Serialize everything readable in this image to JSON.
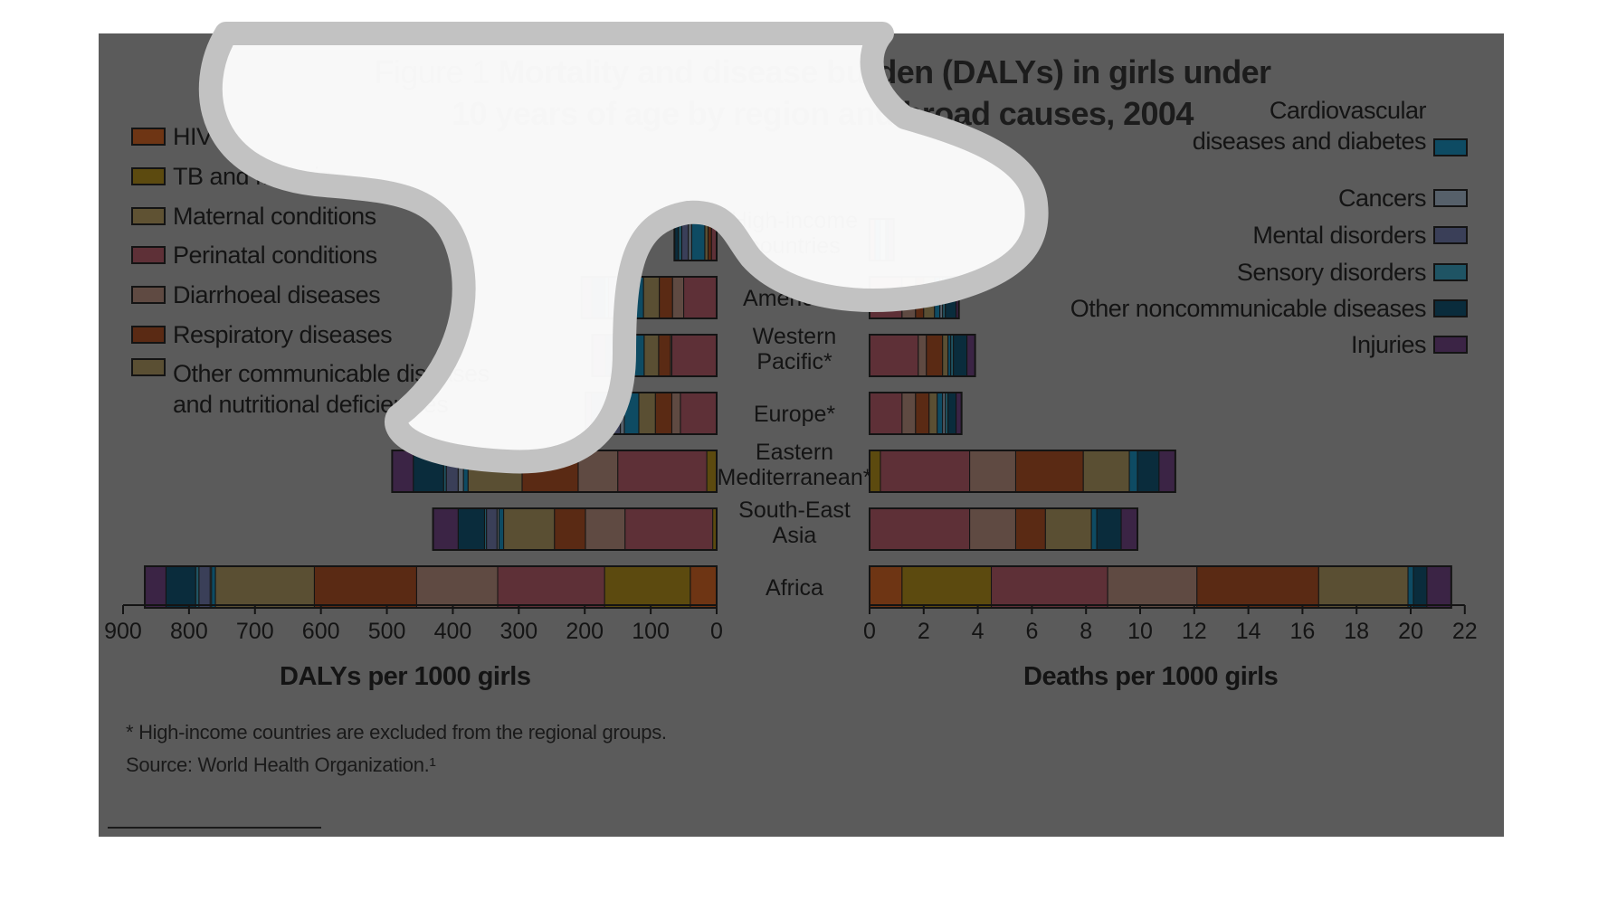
{
  "title": {
    "prefix": "Figure 1 ",
    "main": "Mortality and disease burden (DALYs) in girls under 10 years of age by region and broad causes, 2004"
  },
  "legend_left": [
    {
      "label": "HIV",
      "color": "#6e3514"
    },
    {
      "label": "TB and Malaria",
      "color": "#5c4a0f"
    },
    {
      "label": "Maternal conditions",
      "color": "#5f5233"
    },
    {
      "label": "Perinatal conditions",
      "color": "#5e3037"
    },
    {
      "label": "Diarrhoeal diseases",
      "color": "#5f4a42"
    },
    {
      "label": "Respiratory diseases",
      "color": "#5a2a14"
    },
    {
      "label": "Other communicable diseases\nand nutritional deficiencies",
      "color": "#5a4f33"
    }
  ],
  "legend_right": [
    {
      "label": "Cardiovascular\ndiseases and diabetes",
      "color": "#0e4b63"
    },
    {
      "label": "Cancers",
      "color": "#56606a"
    },
    {
      "label": "Mental disorders",
      "color": "#3a3f58"
    },
    {
      "label": "Sensory disorders",
      "color": "#1f5464"
    },
    {
      "label": "Other noncommunicable diseases",
      "color": "#0a2c3c"
    },
    {
      "label": "Injuries",
      "color": "#3b2445"
    }
  ],
  "axes": {
    "left_title": "DALYs per 1000 girls",
    "right_title": "Deaths per 1000 girls",
    "left_ticks": [
      "900",
      "800",
      "700",
      "600",
      "500",
      "400",
      "300",
      "200",
      "100",
      "0"
    ],
    "right_ticks": [
      "0",
      "2",
      "4",
      "6",
      "8",
      "10",
      "12",
      "14",
      "16",
      "18",
      "20",
      "22"
    ]
  },
  "notes": {
    "footnote": "* High-income countries are excluded from the regional groups.",
    "source": "Source: World Health Organization.¹"
  },
  "chart_data": [
    {
      "type": "bar",
      "orientation": "horizontal",
      "stacked": true,
      "direction": "right-to-left",
      "xlabel": "DALYs per 1000 girls",
      "xlim": [
        0,
        900
      ],
      "categories": [
        "High-income\ncountries",
        "Americas*",
        "Western\nPacific*",
        "Europe*",
        "Eastern\nMediterranean*",
        "South-East\nAsia",
        "Africa"
      ],
      "series": [
        {
          "name": "HIV",
          "color": "#6e3514",
          "values": [
            0,
            0,
            0,
            0,
            0,
            0,
            40
          ]
        },
        {
          "name": "TB and Malaria",
          "color": "#5c4a0f",
          "values": [
            0,
            0,
            0,
            0,
            15,
            6,
            130
          ]
        },
        {
          "name": "Maternal conditions",
          "color": "#5f5233",
          "values": [
            0,
            0,
            0,
            0,
            0,
            0,
            0
          ]
        },
        {
          "name": "Perinatal conditions",
          "color": "#5e3037",
          "values": [
            8,
            50,
            68,
            55,
            135,
            133,
            162
          ]
        },
        {
          "name": "Diarrhoeal diseases",
          "color": "#5f4a42",
          "values": [
            0,
            17,
            2,
            13,
            60,
            60,
            123
          ]
        },
        {
          "name": "Respiratory diseases",
          "color": "#5a2a14",
          "values": [
            5,
            20,
            18,
            25,
            85,
            47,
            155
          ]
        },
        {
          "name": "Other communicable diseases and nutritional deficiencies",
          "color": "#5a4f33",
          "values": [
            5,
            24,
            22,
            25,
            82,
            77,
            150
          ]
        },
        {
          "name": "Cardiovascular diseases and diabetes",
          "color": "#0e4b63",
          "values": [
            20,
            23,
            22,
            22,
            7,
            7,
            6
          ]
        },
        {
          "name": "Cancers",
          "color": "#56606a",
          "values": [
            5,
            4,
            3,
            6,
            8,
            3,
            2
          ]
        },
        {
          "name": "Mental disorders",
          "color": "#3a3f58",
          "values": [
            10,
            26,
            12,
            18,
            18,
            16,
            17
          ]
        },
        {
          "name": "Sensory disorders",
          "color": "#1f5464",
          "values": [
            5,
            5,
            8,
            4,
            4,
            3,
            5
          ]
        },
        {
          "name": "Other noncommunicable diseases",
          "color": "#0a2c3c",
          "values": [
            6,
            20,
            14,
            22,
            46,
            40,
            45
          ]
        },
        {
          "name": "Injuries",
          "color": "#3b2445",
          "values": [
            0,
            16,
            20,
            9,
            32,
            38,
            32
          ]
        }
      ]
    },
    {
      "type": "bar",
      "orientation": "horizontal",
      "stacked": true,
      "direction": "left-to-right",
      "xlabel": "Deaths per 1000 girls",
      "xlim": [
        0,
        22
      ],
      "categories": [
        "High-income\ncountries",
        "Americas*",
        "Western\nPacific*",
        "Europe*",
        "Eastern\nMediterranean*",
        "South-East\nAsia",
        "Africa"
      ],
      "series": [
        {
          "name": "HIV",
          "color": "#6e3514",
          "values": [
            0,
            0,
            0,
            0,
            0,
            0,
            1.2
          ]
        },
        {
          "name": "TB and Malaria",
          "color": "#5c4a0f",
          "values": [
            0,
            0,
            0,
            0,
            0.4,
            0,
            3.3
          ]
        },
        {
          "name": "Maternal conditions",
          "color": "#5f5233",
          "values": [
            0,
            0,
            0,
            0,
            0,
            0,
            0
          ]
        },
        {
          "name": "Perinatal conditions",
          "color": "#5e3037",
          "values": [
            0.2,
            1.2,
            1.8,
            1.2,
            3.3,
            3.7,
            4.3
          ]
        },
        {
          "name": "Diarrhoeal diseases",
          "color": "#5f4a42",
          "values": [
            0,
            0.5,
            0.3,
            0.5,
            1.7,
            1.7,
            3.3
          ]
        },
        {
          "name": "Respiratory diseases",
          "color": "#5a2a14",
          "values": [
            0,
            0.3,
            0.6,
            0.5,
            2.5,
            1.1,
            4.5
          ]
        },
        {
          "name": "Other communicable diseases and nutritional deficiencies",
          "color": "#5a4f33",
          "values": [
            0,
            0.4,
            0.2,
            0.3,
            1.7,
            1.7,
            3.3
          ]
        },
        {
          "name": "Cardiovascular diseases and diabetes",
          "color": "#0e4b63",
          "values": [
            0.2,
            0.2,
            0.1,
            0.2,
            0.3,
            0.2,
            0.2
          ]
        },
        {
          "name": "Cancers",
          "color": "#56606a",
          "values": [
            0.2,
            0.1,
            0,
            0.1,
            0,
            0,
            0
          ]
        },
        {
          "name": "Mental disorders",
          "color": "#3a3f58",
          "values": [
            0,
            0,
            0,
            0,
            0,
            0,
            0
          ]
        },
        {
          "name": "Sensory disorders",
          "color": "#1f5464",
          "values": [
            0,
            0.1,
            0.1,
            0.1,
            0,
            0,
            0
          ]
        },
        {
          "name": "Other noncommunicable diseases",
          "color": "#0a2c3c",
          "values": [
            0.1,
            0.4,
            0.5,
            0.3,
            0.8,
            0.9,
            0.5
          ]
        },
        {
          "name": "Injuries",
          "color": "#3b2445",
          "values": [
            0.2,
            0.1,
            0.3,
            0.2,
            0.6,
            0.6,
            0.9
          ]
        }
      ]
    }
  ]
}
